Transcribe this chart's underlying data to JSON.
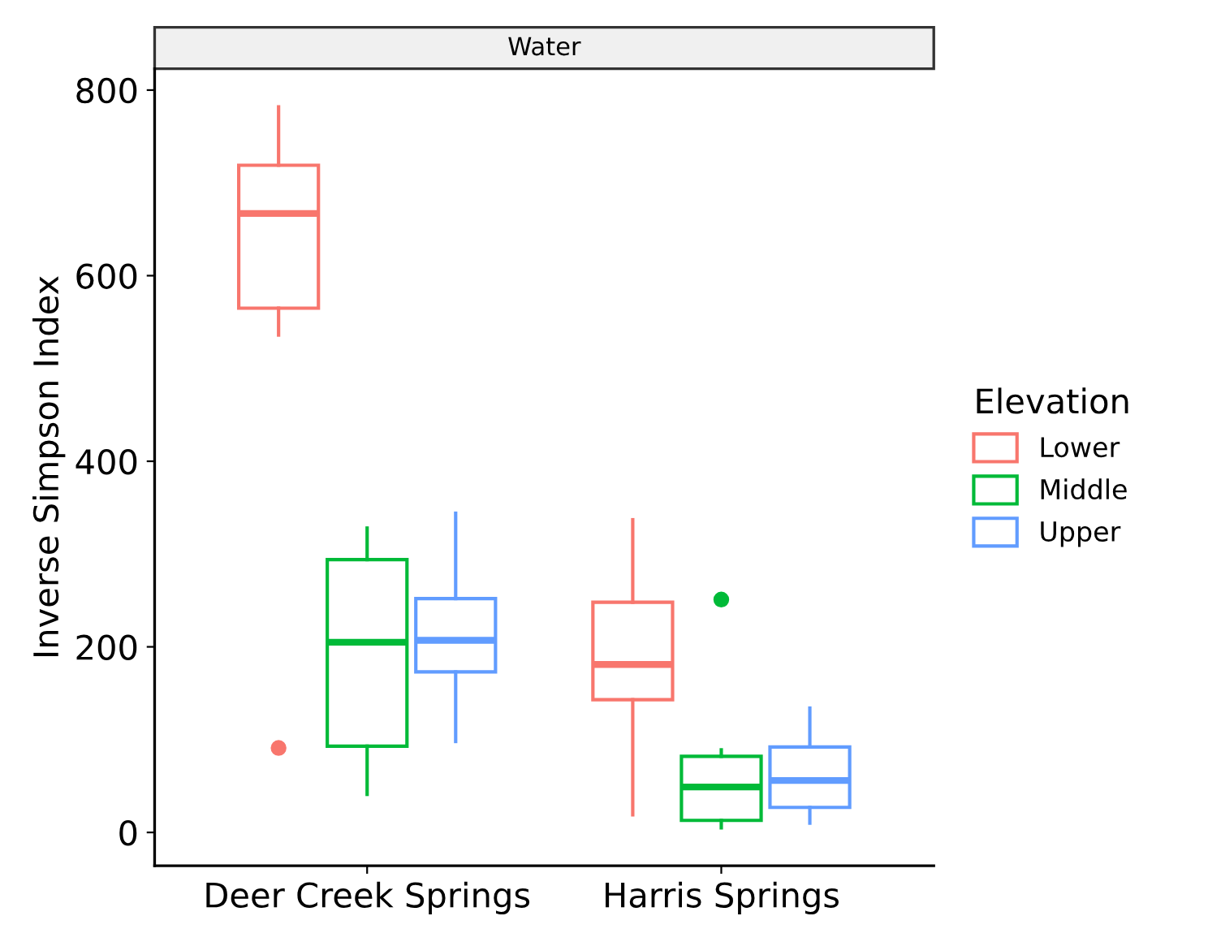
{
  "chart_data": {
    "type": "box",
    "title": "Water",
    "ylabel": "Inverse Simpson Index",
    "legend_title": "Elevation",
    "legend": "right",
    "grid": false,
    "categories": [
      "Deer Creek Springs",
      "Harris Springs"
    ],
    "ylim": [
      -36,
      823
    ],
    "yticks": [
      0,
      200,
      400,
      600,
      800
    ],
    "series": [
      {
        "name": "Lower",
        "color": "#f8766d",
        "boxes": [
          {
            "low": 536,
            "q1": 565,
            "median": 667,
            "q3": 719,
            "high": 782,
            "outliers": [
              91
            ]
          },
          {
            "low": 19,
            "q1": 143,
            "median": 181,
            "q3": 248,
            "high": 337
          }
        ]
      },
      {
        "name": "Middle",
        "color": "#00ba38",
        "boxes": [
          {
            "low": 41,
            "q1": 93,
            "median": 205,
            "q3": 294,
            "high": 328
          },
          {
            "low": 5,
            "q1": 13,
            "median": 49,
            "q3": 82,
            "high": 89,
            "outliers": [
              251
            ]
          }
        ]
      },
      {
        "name": "Upper",
        "color": "#619cff",
        "boxes": [
          {
            "low": 98,
            "q1": 173,
            "median": 207,
            "q3": 252,
            "high": 344
          },
          {
            "low": 10,
            "q1": 27,
            "median": 56,
            "q3": 92,
            "high": 134
          }
        ]
      }
    ]
  }
}
